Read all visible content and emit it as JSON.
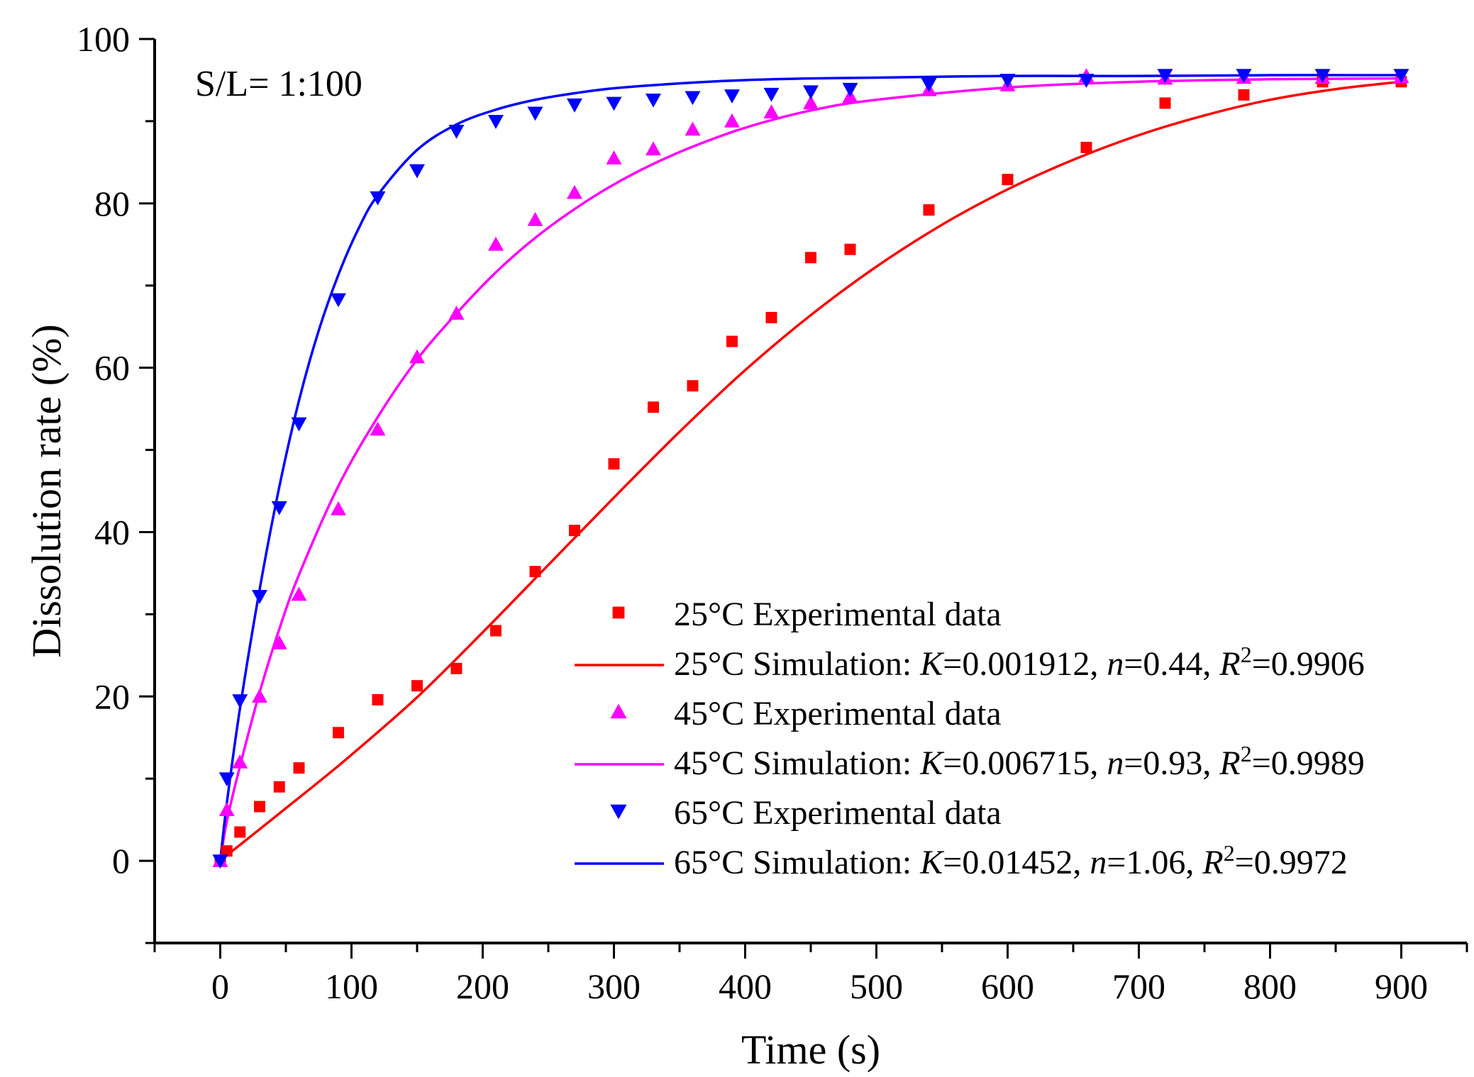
{
  "chart_data": {
    "type": "scatter",
    "annotation": "S/L= 1:100",
    "xlabel": "Time (s)",
    "ylabel": "Dissolution rate (%)",
    "xlim": [
      -50,
      950
    ],
    "ylim": [
      -10,
      100
    ],
    "xticks": [
      0,
      100,
      200,
      300,
      400,
      500,
      600,
      700,
      800,
      900
    ],
    "yticks": [
      0,
      20,
      40,
      60,
      80,
      100
    ],
    "grid": false,
    "legend_position": "bottom-right",
    "series": [
      {
        "name": "25°C Experimental data",
        "kind": "points",
        "marker": "square",
        "color": "#ff0000",
        "x": [
          0,
          5,
          15,
          30,
          45,
          60,
          90,
          120,
          150,
          180,
          210,
          240,
          270,
          300,
          330,
          360,
          390,
          420,
          450,
          480,
          540,
          600,
          660,
          720,
          780,
          840,
          900
        ],
        "y": [
          0,
          1.2,
          3.5,
          6.6,
          9.0,
          11.3,
          15.6,
          19.6,
          21.3,
          23.4,
          28.0,
          35.2,
          40.2,
          48.3,
          55.2,
          57.8,
          63.2,
          66.1,
          73.4,
          74.4,
          79.2,
          82.9,
          86.8,
          92.2,
          93.2,
          94.8,
          94.8
        ]
      },
      {
        "name": "25°C Simulation",
        "legend_prefix": "25°C Simulation: ",
        "K": "0.001912",
        "n": "0.44",
        "R2": "0.9906",
        "kind": "line",
        "color": "#ff0000",
        "x": [
          0,
          10,
          25,
          50,
          75,
          100,
          150,
          200,
          250,
          300,
          350,
          400,
          450,
          500,
          550,
          600,
          650,
          700,
          750,
          800,
          850,
          900
        ],
        "y": [
          0,
          1.3,
          3.2,
          6.4,
          9.6,
          12.9,
          19.9,
          27.8,
          36.0,
          44.2,
          52.2,
          59.7,
          66.4,
          72.3,
          77.4,
          81.7,
          85.3,
          88.3,
          90.7,
          92.6,
          93.9,
          94.8
        ]
      },
      {
        "name": "45°C Experimental data",
        "kind": "points",
        "marker": "triangle-up",
        "color": "#ff00ff",
        "x": [
          0,
          5,
          15,
          30,
          45,
          60,
          90,
          120,
          150,
          180,
          210,
          240,
          270,
          300,
          330,
          360,
          390,
          420,
          450,
          480,
          540,
          600,
          660,
          720,
          780,
          840,
          900
        ],
        "y": [
          0,
          6.2,
          12.0,
          20.0,
          26.5,
          32.4,
          42.8,
          52.5,
          61.3,
          66.6,
          75.0,
          78.0,
          81.3,
          85.5,
          86.6,
          89.0,
          90.0,
          91.1,
          92.2,
          93.0,
          93.8,
          94.4,
          95.5,
          95.2,
          95.3,
          95.3,
          95.4
        ]
      },
      {
        "name": "45°C Simulation",
        "legend_prefix": "45°C Simulation: ",
        "K": "0.006715",
        "n": "0.93",
        "R2": "0.9989",
        "kind": "line",
        "color": "#ff00ff",
        "x": [
          0,
          5,
          15,
          30,
          45,
          60,
          90,
          120,
          150,
          180,
          210,
          240,
          270,
          300,
          330,
          360,
          400,
          450,
          500,
          600,
          700,
          800,
          900
        ],
        "y": [
          0,
          4.8,
          11.5,
          20.5,
          28.2,
          34.8,
          45.6,
          54.0,
          61.0,
          66.6,
          71.6,
          75.8,
          79.3,
          82.3,
          84.8,
          86.9,
          89.2,
          91.3,
          92.6,
          94.1,
          94.8,
          95.1,
          95.2
        ]
      },
      {
        "name": "65°C Experimental data",
        "kind": "points",
        "marker": "triangle-down",
        "color": "#0000ff",
        "x": [
          0,
          5,
          15,
          30,
          45,
          60,
          90,
          120,
          150,
          180,
          210,
          240,
          270,
          300,
          330,
          360,
          390,
          420,
          450,
          480,
          540,
          600,
          660,
          720,
          780,
          840,
          900
        ],
        "y": [
          0,
          10.0,
          19.5,
          32.2,
          43.0,
          53.2,
          68.3,
          80.7,
          84.0,
          88.8,
          90.0,
          91.0,
          92.0,
          92.2,
          92.6,
          92.9,
          93.1,
          93.3,
          93.6,
          93.9,
          94.5,
          95.0,
          95.0,
          95.6,
          95.6,
          95.6,
          95.6
        ]
      },
      {
        "name": "65°C Simulation",
        "legend_prefix": "65°C Simulation: ",
        "K": "0.01452",
        "n": "1.06",
        "R2": "0.9972",
        "kind": "line",
        "color": "#0000ff",
        "x": [
          0,
          5,
          15,
          30,
          45,
          60,
          75,
          90,
          105,
          120,
          150,
          180,
          210,
          240,
          270,
          300,
          350,
          400,
          450,
          500,
          600,
          700,
          800,
          900
        ],
        "y": [
          0,
          7.0,
          18.5,
          33.0,
          45.5,
          56.0,
          64.5,
          71.3,
          76.8,
          81.0,
          86.5,
          89.6,
          91.4,
          92.6,
          93.4,
          94.0,
          94.6,
          95.0,
          95.2,
          95.3,
          95.5,
          95.5,
          95.6,
          95.6
        ]
      }
    ]
  }
}
